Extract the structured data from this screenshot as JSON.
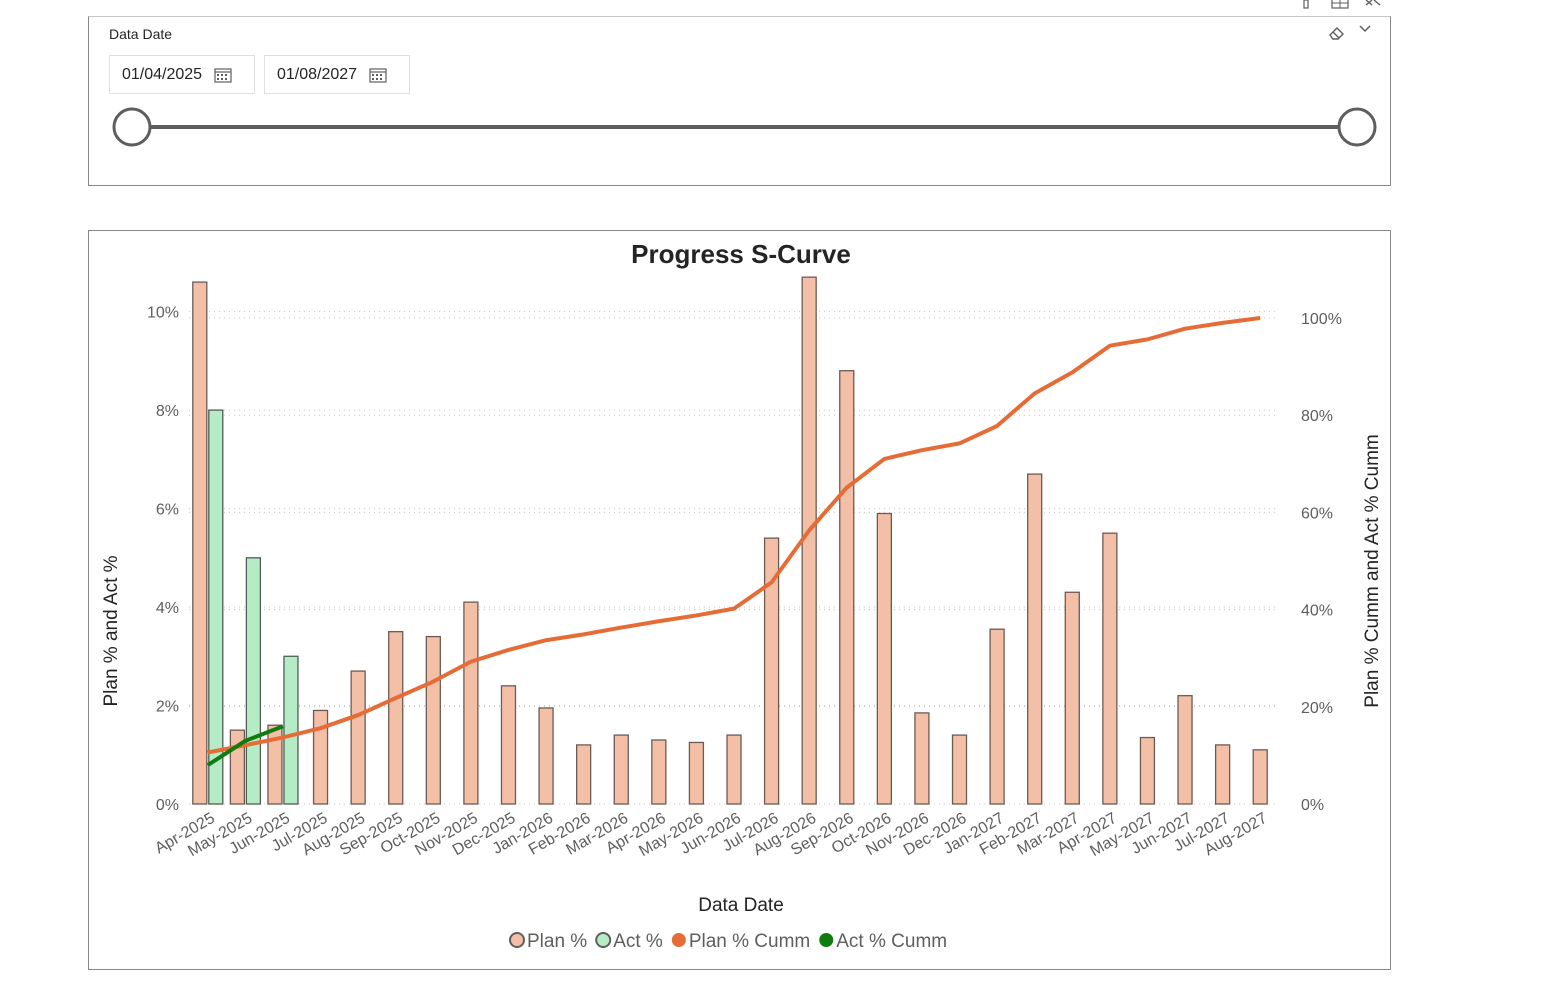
{
  "slicer": {
    "title": "Data Date",
    "start_date": "01/04/2025",
    "end_date": "01/08/2027",
    "range_fraction": [
      0,
      1
    ],
    "icons": [
      "calendar-icon",
      "eraser-icon",
      "chevron-down-icon",
      "focus-mode-icon",
      "more-options-icon"
    ]
  },
  "chart_data": {
    "type": "bar+line",
    "title": "Progress S-Curve",
    "xlabel": "Data Date",
    "ylabel_left": "Plan % and Act %",
    "ylabel_right": "Plan % Cumm and Act % Cumm",
    "ylim_left": [
      0,
      10.5
    ],
    "ylim_right": [
      0,
      100
    ],
    "yticks_left": [
      "0%",
      "2%",
      "4%",
      "6%",
      "8%",
      "10%"
    ],
    "yticks_right": [
      "0%",
      "20%",
      "40%",
      "60%",
      "80%",
      "100%"
    ],
    "grid": true,
    "legend_position": "bottom",
    "categories": [
      "Apr-2025",
      "May-2025",
      "Jun-2025",
      "Jul-2025",
      "Aug-2025",
      "Sep-2025",
      "Oct-2025",
      "Nov-2025",
      "Dec-2025",
      "Jan-2026",
      "Feb-2026",
      "Mar-2026",
      "Apr-2026",
      "May-2026",
      "Jun-2026",
      "Jul-2026",
      "Aug-2026",
      "Sep-2026",
      "Oct-2026",
      "Nov-2026",
      "Dec-2026",
      "Jan-2027",
      "Feb-2027",
      "Mar-2027",
      "Apr-2027",
      "May-2027",
      "Jun-2027",
      "Jul-2027",
      "Aug-2027"
    ],
    "series": [
      {
        "name": "Plan %",
        "type": "bar",
        "axis": "left",
        "color": "#f4bfa7",
        "values": [
          10.6,
          1.5,
          1.6,
          1.9,
          2.7,
          3.5,
          3.4,
          4.1,
          2.4,
          1.95,
          1.2,
          1.4,
          1.3,
          1.25,
          1.4,
          5.4,
          10.7,
          8.8,
          5.9,
          1.85,
          1.4,
          3.55,
          6.7,
          4.3,
          5.5,
          1.35,
          2.2,
          1.2,
          1.1
        ]
      },
      {
        "name": "Act %",
        "type": "bar",
        "axis": "left",
        "color": "#b5ecc6",
        "values": [
          8.0,
          5.0,
          3.0,
          null,
          null,
          null,
          null,
          null,
          null,
          null,
          null,
          null,
          null,
          null,
          null,
          null,
          null,
          null,
          null,
          null,
          null,
          null,
          null,
          null,
          null,
          null,
          null,
          null,
          null
        ]
      },
      {
        "name": "Plan % Cumm",
        "type": "line",
        "axis": "right",
        "color": "#e66c37",
        "values": [
          10.6,
          12.1,
          13.7,
          15.6,
          18.3,
          21.8,
          25.2,
          29.3,
          31.7,
          33.7,
          34.9,
          36.3,
          37.6,
          38.8,
          40.2,
          45.6,
          56.3,
          65.1,
          71.0,
          72.8,
          74.2,
          77.8,
          84.5,
          88.8,
          94.3,
          95.6,
          97.8,
          99.0,
          100.0
        ]
      },
      {
        "name": "Act % Cumm",
        "type": "line",
        "axis": "right",
        "color": "#107c10",
        "values": [
          8.0,
          13.0,
          16.0,
          null,
          null,
          null,
          null,
          null,
          null,
          null,
          null,
          null,
          null,
          null,
          null,
          null,
          null,
          null,
          null,
          null,
          null,
          null,
          null,
          null,
          null,
          null,
          null,
          null,
          null
        ]
      }
    ]
  }
}
